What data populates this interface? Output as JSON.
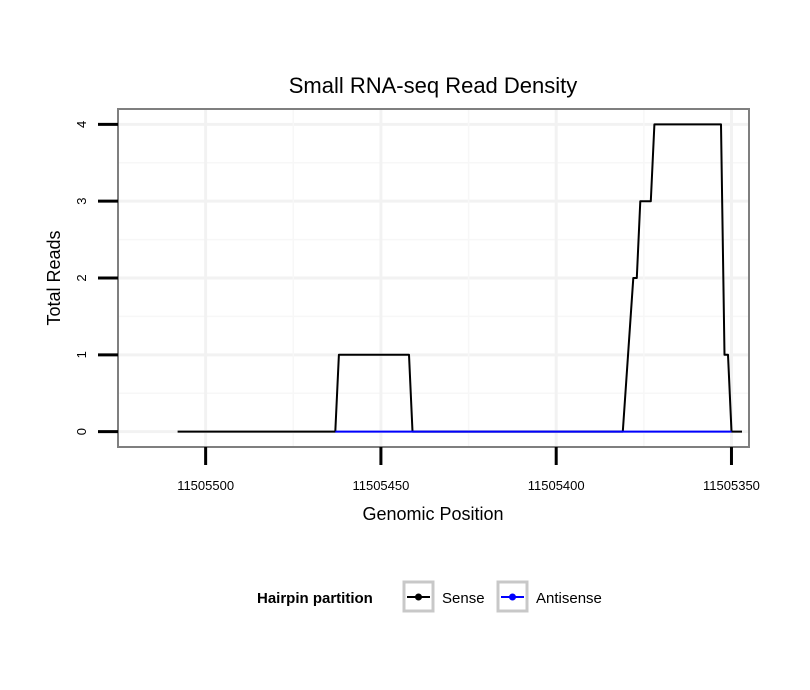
{
  "chart_data": {
    "type": "line",
    "title": "Small RNA-seq Read Density",
    "xlabel": "Genomic Position",
    "ylabel": "Total Reads",
    "xlim": [
      11505525,
      11505345
    ],
    "ylim": [
      -0.2,
      4.2
    ],
    "x_reversed": true,
    "grid": true,
    "x_ticks": [
      11505500,
      11505450,
      11505400,
      11505350
    ],
    "x_tick_labels": [
      "11505500",
      "11505450",
      "11505400",
      "11505350"
    ],
    "y_ticks": [
      0,
      1,
      2,
      3,
      4
    ],
    "y_tick_labels": [
      "0",
      "1",
      "2",
      "3",
      "4"
    ],
    "legend": {
      "title": "Hairpin partition",
      "position": "bottom"
    },
    "series": [
      {
        "name": "Sense",
        "color": "#000000",
        "points": [
          [
            11505508,
            0
          ],
          [
            11505463,
            0
          ],
          [
            11505462,
            1
          ],
          [
            11505442,
            1
          ],
          [
            11505441,
            0
          ],
          [
            11505381,
            0
          ],
          [
            11505378,
            2
          ],
          [
            11505377,
            2
          ],
          [
            11505376,
            3
          ],
          [
            11505373,
            3
          ],
          [
            11505372,
            4
          ],
          [
            11505353,
            4
          ],
          [
            11505352,
            1
          ],
          [
            11505351,
            1
          ],
          [
            11505350,
            0
          ],
          [
            11505347,
            0
          ]
        ]
      },
      {
        "name": "Antisense",
        "color": "#0000ff",
        "points": [
          [
            11505463,
            0
          ],
          [
            11505441,
            0
          ],
          [
            11505381,
            0
          ],
          [
            11505350,
            0
          ]
        ]
      }
    ]
  }
}
